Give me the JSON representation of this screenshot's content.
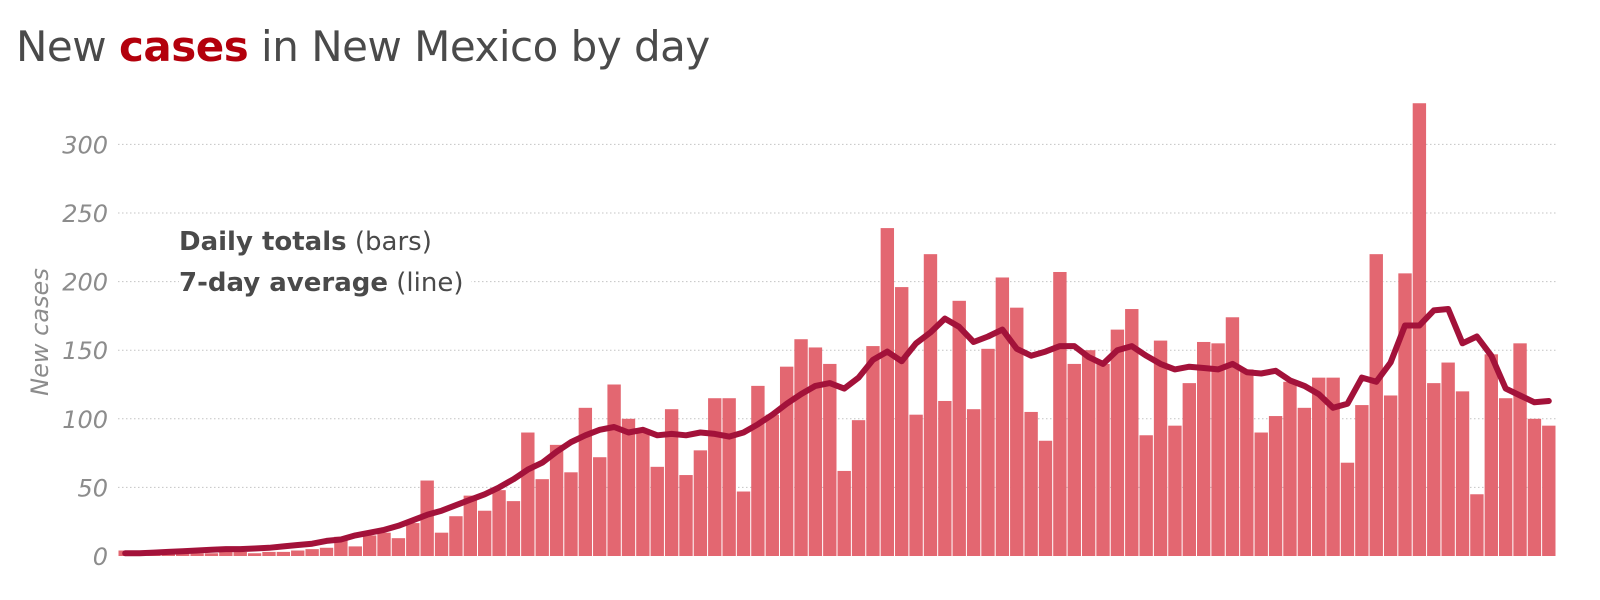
{
  "title": {
    "before": "New ",
    "highlight": "cases",
    "after": " in New Mexico by day"
  },
  "legend": {
    "daily_strong": "Daily totals",
    "daily_rest": " (bars)",
    "avg_strong": "7-day average",
    "avg_rest": " (line)"
  },
  "colors": {
    "bar": "#e36771",
    "line": "#a3123a",
    "highlight": "#b3000c"
  },
  "chart_data": {
    "type": "bar",
    "ylabel": "New cases",
    "ylim": [
      0,
      330
    ],
    "yticks": [
      0,
      50,
      100,
      150,
      200,
      250,
      300
    ],
    "grid": true,
    "legend_placement": "top-left",
    "series": [
      {
        "name": "Daily totals",
        "type": "bar",
        "values": [
          4,
          1,
          1,
          2,
          2,
          2,
          2,
          3,
          3,
          2,
          3,
          3,
          4,
          5,
          6,
          14,
          7,
          15,
          17,
          13,
          24,
          55,
          17,
          29,
          44,
          33,
          48,
          40,
          90,
          56,
          81,
          61,
          108,
          72,
          125,
          100,
          90,
          65,
          107,
          59,
          77,
          115,
          115,
          47,
          124,
          103,
          138,
          158,
          152,
          140,
          62,
          99,
          153,
          239,
          196,
          103,
          220,
          113,
          186,
          107,
          151,
          203,
          181,
          105,
          84,
          207,
          140,
          150,
          140,
          165,
          180,
          88,
          157,
          95,
          126,
          156,
          155,
          174,
          136,
          90,
          102,
          127,
          108,
          130,
          130,
          68,
          110,
          220,
          117,
          206,
          330,
          126,
          141,
          120,
          45,
          147,
          115,
          155,
          100,
          95
        ]
      },
      {
        "name": "7-day average",
        "type": "line",
        "values": [
          2,
          2,
          2.5,
          3,
          3.5,
          4,
          4.5,
          5,
          5,
          5.5,
          6,
          7,
          8,
          9,
          11,
          12,
          15,
          17,
          19,
          22,
          26,
          30,
          33,
          37,
          41,
          45,
          50,
          56,
          63,
          68,
          76,
          83,
          88,
          92,
          94,
          90,
          92,
          88,
          89,
          88,
          90,
          89,
          87,
          90,
          96,
          103,
          111,
          118,
          124,
          126,
          122,
          130,
          143,
          149,
          142,
          155,
          163,
          173,
          167,
          156,
          160,
          165,
          151,
          146,
          149,
          153,
          153,
          145,
          140,
          150,
          153,
          146,
          140,
          136,
          138,
          137,
          136,
          140,
          134,
          133,
          135,
          128,
          124,
          118,
          108,
          111,
          130,
          127,
          141,
          168,
          168,
          179,
          180,
          155,
          160,
          146,
          122,
          117,
          112,
          113
        ]
      }
    ]
  }
}
